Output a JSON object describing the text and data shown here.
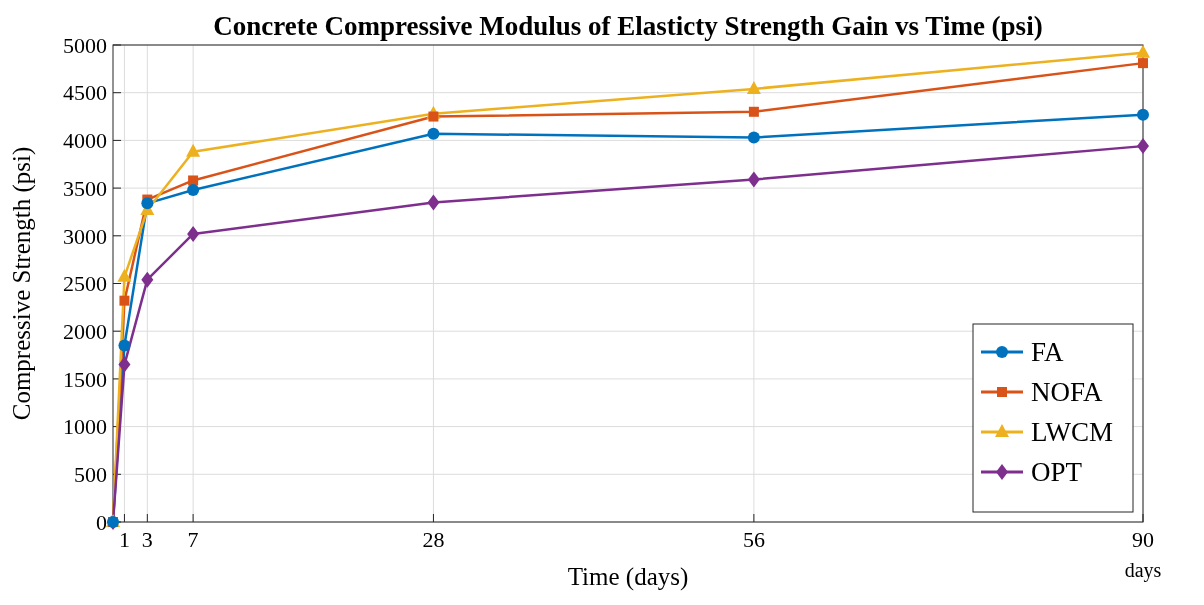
{
  "chart_data": {
    "type": "line",
    "title": "Concrete Compressive Modulus of Elasticty Strength Gain vs Time (psi)",
    "xlabel": "Time (days)",
    "ylabel": "Compressive Strength (psi)",
    "x": [
      0,
      1,
      3,
      7,
      28,
      56,
      90
    ],
    "series": [
      {
        "name": "FA",
        "color": "#0072bd",
        "marker": "circle",
        "values": [
          0,
          1850,
          3340,
          3480,
          4070,
          4030,
          4270
        ]
      },
      {
        "name": "NOFA",
        "color": "#d95319",
        "marker": "square",
        "values": [
          0,
          2320,
          3380,
          3580,
          4250,
          4300,
          4810
        ]
      },
      {
        "name": "LWCM",
        "color": "#edb120",
        "marker": "triangle",
        "values": [
          0,
          2570,
          3270,
          3880,
          4280,
          4540,
          4920
        ]
      },
      {
        "name": "OPT",
        "color": "#7e2f8e",
        "marker": "diamond",
        "values": [
          0,
          1650,
          2540,
          3020,
          3350,
          3590,
          3940
        ]
      }
    ],
    "xlim": [
      0,
      90
    ],
    "xticks": [
      1,
      3,
      7,
      28,
      56,
      {
        "value": 90,
        "label": "90 days"
      }
    ],
    "ylim": [
      0,
      5000
    ],
    "yticks": [
      0,
      500,
      1000,
      1500,
      2000,
      2500,
      3000,
      3500,
      4000,
      4500,
      5000
    ],
    "grid": true,
    "legend": "bottom right",
    "line_style": "solid"
  }
}
